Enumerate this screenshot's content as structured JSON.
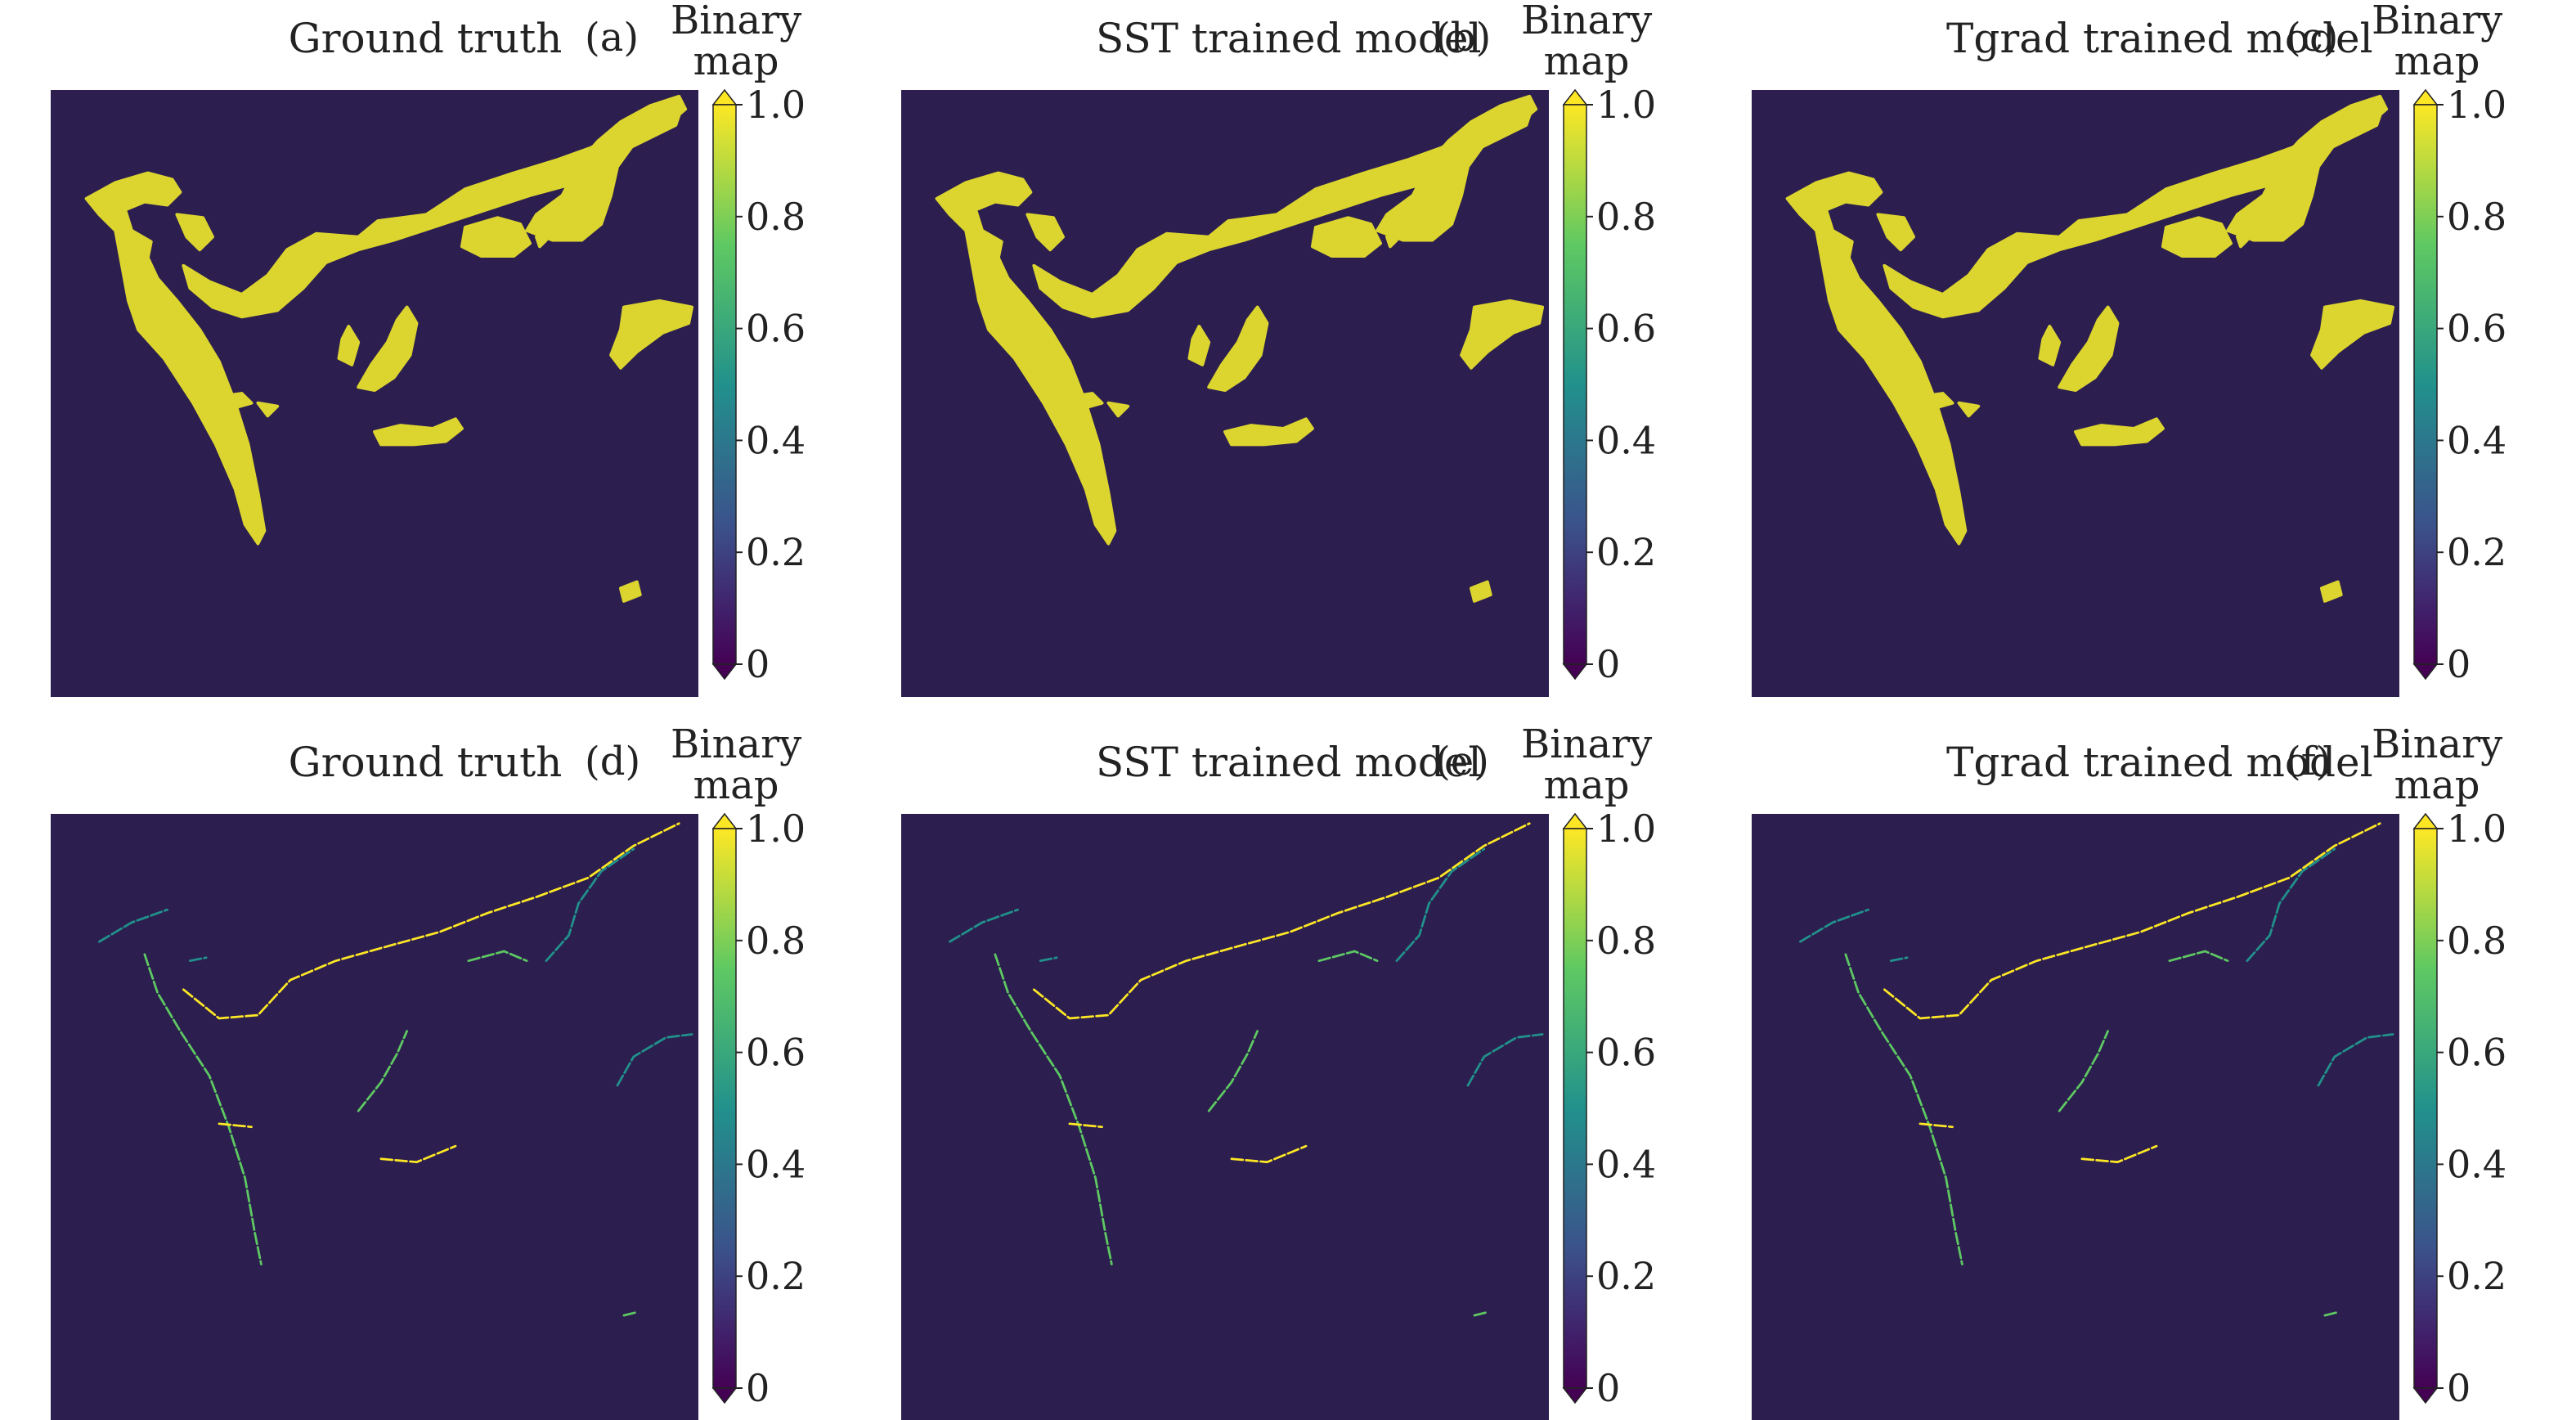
{
  "chart_data": [
    {
      "type": "heatmap",
      "panel_label": "(a)",
      "title": "Ground truth",
      "colorbar_title": [
        "Binary",
        "map"
      ],
      "colorbar_ticks": [
        "0",
        "0.2",
        "0.4",
        "0.6",
        "0.8",
        "1.0"
      ],
      "vmin": 0,
      "vmax": 1,
      "colormap": "viridis",
      "content": "front-mask",
      "values_present": [
        0,
        1
      ]
    },
    {
      "type": "heatmap",
      "panel_label": "(b)",
      "title": "SST trained model",
      "colorbar_title": [
        "Binary",
        "map"
      ],
      "colorbar_ticks": [
        "0",
        "0.2",
        "0.4",
        "0.6",
        "0.8",
        "1.0"
      ],
      "vmin": 0,
      "vmax": 1,
      "colormap": "viridis",
      "content": "front-mask",
      "values_present": [
        0,
        1
      ]
    },
    {
      "type": "heatmap",
      "panel_label": "(c)",
      "title": "Tgrad trained model",
      "colorbar_title": [
        "Binary",
        "map"
      ],
      "colorbar_ticks": [
        "0",
        "0.2",
        "0.4",
        "0.6",
        "0.8",
        "1.0"
      ],
      "vmin": 0,
      "vmax": 1,
      "colormap": "viridis",
      "content": "front-mask",
      "values_present": [
        0,
        1
      ]
    },
    {
      "type": "heatmap",
      "panel_label": "(d)",
      "title": "Ground truth",
      "colorbar_title": [
        "Binary",
        "map"
      ],
      "colorbar_ticks": [
        "0",
        "0.2",
        "0.4",
        "0.6",
        "0.8",
        "1.0"
      ],
      "vmin": 0,
      "vmax": 1,
      "colormap": "viridis",
      "content": "front-edges",
      "values_present": [
        0,
        1
      ]
    },
    {
      "type": "heatmap",
      "panel_label": "(e)",
      "title": "SST trained model",
      "colorbar_title": [
        "Binary",
        "map"
      ],
      "colorbar_ticks": [
        "0",
        "0.2",
        "0.4",
        "0.6",
        "0.8",
        "1.0"
      ],
      "vmin": 0,
      "vmax": 1,
      "colormap": "viridis",
      "content": "front-edges",
      "values_present": [
        0,
        1
      ]
    },
    {
      "type": "heatmap",
      "panel_label": "(f)",
      "title": "Tgrad trained model",
      "colorbar_title": [
        "Binary",
        "map"
      ],
      "colorbar_ticks": [
        "0",
        "0.2",
        "0.4",
        "0.6",
        "0.8",
        "1.0"
      ],
      "vmin": 0,
      "vmax": 1,
      "colormap": "viridis",
      "content": "front-edges",
      "values_present": [
        0,
        1
      ]
    }
  ],
  "colors": {
    "background_value_0": "#2c1f4f",
    "front_value_1": "#dcd52f",
    "viridis": [
      "#440154",
      "#3b528b",
      "#21918c",
      "#5ec962",
      "#fde725"
    ]
  }
}
